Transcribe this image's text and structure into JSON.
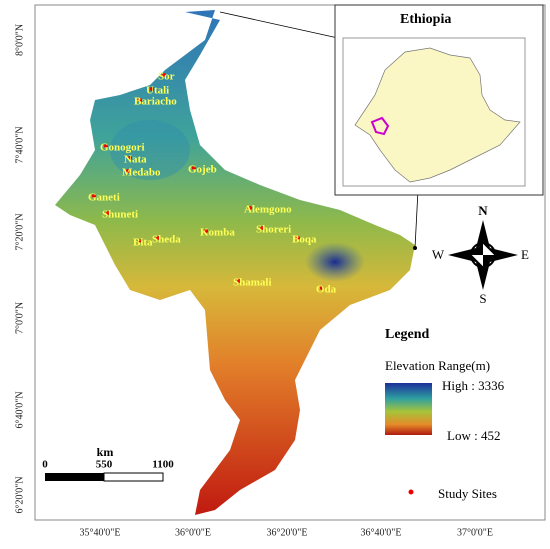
{
  "map": {
    "inset_title": "Ethiopia",
    "sites": [
      "Sor",
      "Utali",
      "Bariacho",
      "Gonogori",
      "Nata",
      "Medabo",
      "Gojeb",
      "Ganeti",
      "Shuneti",
      "Alemgono",
      "Shoreri",
      "Komba",
      "Bita",
      "Sheda",
      "Boqa",
      "Shamali",
      "Oda"
    ],
    "compass": [
      "N",
      "S",
      "W",
      "E"
    ],
    "lat_labels": [
      "8°0'0\"N",
      "7°40'0\"N",
      "7°20'0\"N",
      "7°0'0\"N",
      "6°40'0\"N",
      "6°20'0\"N"
    ],
    "lon_labels": [
      "35°40'0\"E",
      "36°0'0\"E",
      "36°20'0\"E",
      "36°40'0\"E",
      "37°0'0\"E"
    ],
    "legend": {
      "title": "Legend",
      "elevation_title": "Elevation Range(m)",
      "high": "High : 3336",
      "low": "Low : 452",
      "study_sites": "Study Sites"
    },
    "scale_bar": {
      "unit": "km",
      "labels": [
        "0",
        "550",
        "1100"
      ]
    }
  }
}
